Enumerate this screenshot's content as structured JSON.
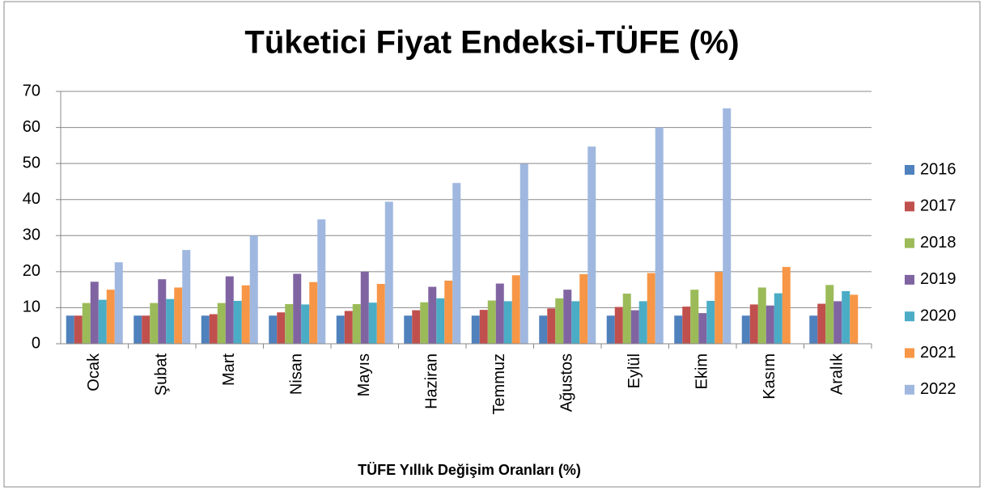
{
  "chart_data": {
    "type": "bar",
    "title": "Tüketici Fiyat Endeksi-TÜFE (%)",
    "x_label": "TÜFE Yıllık Değişim Oranları (%)",
    "categories": [
      "Ocak",
      "Şubat",
      "Mart",
      "Nisan",
      "Mayıs",
      "Haziran",
      "Temmuz",
      "Ağustos",
      "Eylül",
      "Ekim",
      "Kasım",
      "Aralık"
    ],
    "series": [
      {
        "name": "2016",
        "color": "#4f81bd",
        "values": [
          7.8,
          7.8,
          7.8,
          7.8,
          7.8,
          7.8,
          7.8,
          7.8,
          7.8,
          7.8,
          7.8,
          7.8
        ]
      },
      {
        "name": "2017",
        "color": "#c0504d",
        "values": [
          7.8,
          7.8,
          8.2,
          8.7,
          9.1,
          9.3,
          9.4,
          9.8,
          10.2,
          10.3,
          10.9,
          11.1
        ]
      },
      {
        "name": "2018",
        "color": "#9bbb59",
        "values": [
          11.3,
          11.3,
          11.3,
          11.0,
          11.0,
          11.5,
          12.0,
          12.6,
          13.9,
          15.0,
          15.6,
          16.3
        ]
      },
      {
        "name": "2019",
        "color": "#8064a2",
        "values": [
          17.2,
          17.9,
          18.7,
          19.4,
          20.0,
          15.8,
          16.7,
          15.0,
          9.3,
          8.5,
          10.6,
          11.8
        ]
      },
      {
        "name": "2020",
        "color": "#4bacc6",
        "values": [
          12.2,
          12.4,
          11.9,
          10.9,
          11.4,
          12.6,
          11.8,
          11.8,
          11.8,
          11.9,
          14.0,
          14.6
        ]
      },
      {
        "name": "2021",
        "color": "#f79646",
        "values": [
          15.0,
          15.6,
          16.2,
          17.1,
          16.6,
          17.5,
          19.0,
          19.3,
          19.6,
          19.9,
          21.3,
          13.6
        ]
      },
      {
        "name": "2022",
        "color": "#a0b8e0",
        "values": [
          22.6,
          26.0,
          30.0,
          34.5,
          39.4,
          44.6,
          49.9,
          54.7,
          60.0,
          65.3,
          null,
          null
        ]
      }
    ],
    "ylim": [
      0,
      70
    ],
    "yticks": [
      0,
      10,
      20,
      30,
      40,
      50,
      60,
      70
    ],
    "grid": true,
    "legend": "right"
  }
}
